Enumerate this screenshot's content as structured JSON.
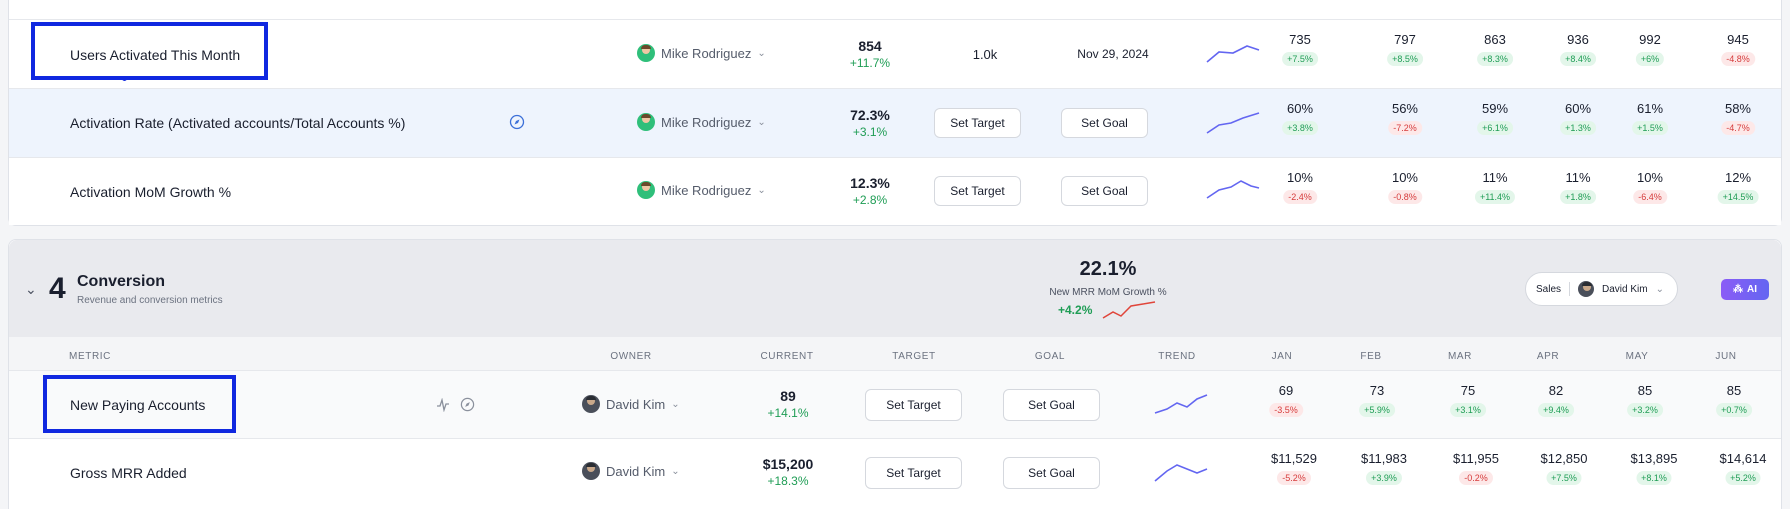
{
  "top_section": {
    "rows": [
      {
        "name": "Users Activated This Month",
        "owner": "Mike Rodriguez",
        "current": "854",
        "current_delta": "+11.7%",
        "target": "1.0k",
        "goal": "Nov 29, 2024",
        "months": [
          {
            "value": "735",
            "delta": "+7.5%",
            "dir": "pos"
          },
          {
            "value": "797",
            "delta": "+8.5%",
            "dir": "pos"
          },
          {
            "value": "863",
            "delta": "+8.3%",
            "dir": "pos"
          },
          {
            "value": "936",
            "delta": "+8.4%",
            "dir": "pos"
          },
          {
            "value": "992",
            "delta": "+6%",
            "dir": "pos"
          },
          {
            "value": "945",
            "delta": "-4.8%",
            "dir": "neg"
          }
        ]
      },
      {
        "name": "Activation Rate (Activated accounts/Total Accounts %)",
        "owner": "Mike Rodriguez",
        "current": "72.3%",
        "current_delta": "+3.1%",
        "target": "Set Target",
        "goal": "Set Goal",
        "months": [
          {
            "value": "60%",
            "delta": "+3.8%",
            "dir": "pos"
          },
          {
            "value": "56%",
            "delta": "-7.2%",
            "dir": "neg"
          },
          {
            "value": "59%",
            "delta": "+6.1%",
            "dir": "pos"
          },
          {
            "value": "60%",
            "delta": "+1.3%",
            "dir": "pos"
          },
          {
            "value": "61%",
            "delta": "+1.5%",
            "dir": "pos"
          },
          {
            "value": "58%",
            "delta": "-4.7%",
            "dir": "neg"
          }
        ]
      },
      {
        "name": "Activation MoM Growth %",
        "owner": "Mike Rodriguez",
        "current": "12.3%",
        "current_delta": "+2.8%",
        "target": "Set Target",
        "goal": "Set Goal",
        "months": [
          {
            "value": "10%",
            "delta": "-2.4%",
            "dir": "neg"
          },
          {
            "value": "10%",
            "delta": "-0.8%",
            "dir": "neg"
          },
          {
            "value": "11%",
            "delta": "+11.4%",
            "dir": "pos"
          },
          {
            "value": "11%",
            "delta": "+1.8%",
            "dir": "pos"
          },
          {
            "value": "10%",
            "delta": "-6.4%",
            "dir": "neg"
          },
          {
            "value": "12%",
            "delta": "+14.5%",
            "dir": "pos"
          }
        ]
      }
    ]
  },
  "conversion": {
    "number": "4",
    "title": "Conversion",
    "subtitle": "Revenue and conversion metrics",
    "kpi_value": "22.1%",
    "kpi_label": "New MRR MoM Growth %",
    "kpi_delta": "+4.2%",
    "team_label": "Sales",
    "team_owner": "David Kim",
    "ai_label": "AI",
    "headers": {
      "metric": "METRIC",
      "owner": "OWNER",
      "current": "CURRENT",
      "target": "TARGET",
      "goal": "GOAL",
      "trend": "TREND",
      "jan": "JAN",
      "feb": "FEB",
      "mar": "MAR",
      "apr": "APR",
      "may": "MAY",
      "jun": "JUN"
    },
    "rows": [
      {
        "name": "New Paying Accounts",
        "owner": "David Kim",
        "current": "89",
        "current_delta": "+14.1%",
        "target": "Set Target",
        "goal": "Set Goal",
        "months": [
          {
            "value": "69",
            "delta": "-3.5%",
            "dir": "neg"
          },
          {
            "value": "73",
            "delta": "+5.9%",
            "dir": "pos"
          },
          {
            "value": "75",
            "delta": "+3.1%",
            "dir": "pos"
          },
          {
            "value": "82",
            "delta": "+9.4%",
            "dir": "pos"
          },
          {
            "value": "85",
            "delta": "+3.2%",
            "dir": "pos"
          },
          {
            "value": "85",
            "delta": "+0.7%",
            "dir": "pos"
          }
        ]
      },
      {
        "name": "Gross MRR Added",
        "owner": "David Kim",
        "current": "$15,200",
        "current_delta": "+18.3%",
        "target": "Set Target",
        "goal": "Set Goal",
        "months": [
          {
            "value": "$11,529",
            "delta": "-5.2%",
            "dir": "neg"
          },
          {
            "value": "$11,983",
            "delta": "+3.9%",
            "dir": "pos"
          },
          {
            "value": "$11,955",
            "delta": "-0.2%",
            "dir": "neg"
          },
          {
            "value": "$12,850",
            "delta": "+7.5%",
            "dir": "pos"
          },
          {
            "value": "$13,895",
            "delta": "+8.1%",
            "dir": "pos"
          },
          {
            "value": "$14,614",
            "delta": "+5.2%",
            "dir": "pos"
          }
        ]
      }
    ]
  },
  "colors": {
    "accent": "#1028e0",
    "positive": "#1f9d55",
    "negative": "#d63b3b",
    "sparkline": "#6366f1",
    "kpi_sparkline": "#e0453a",
    "ai_gradient_start": "#8b5cf6",
    "ai_gradient_end": "#6366f1"
  },
  "icons": {
    "chevron": "chevron-down-icon",
    "compass": "compass-icon",
    "activity": "activity-icon",
    "ai": "sparkles-icon"
  }
}
